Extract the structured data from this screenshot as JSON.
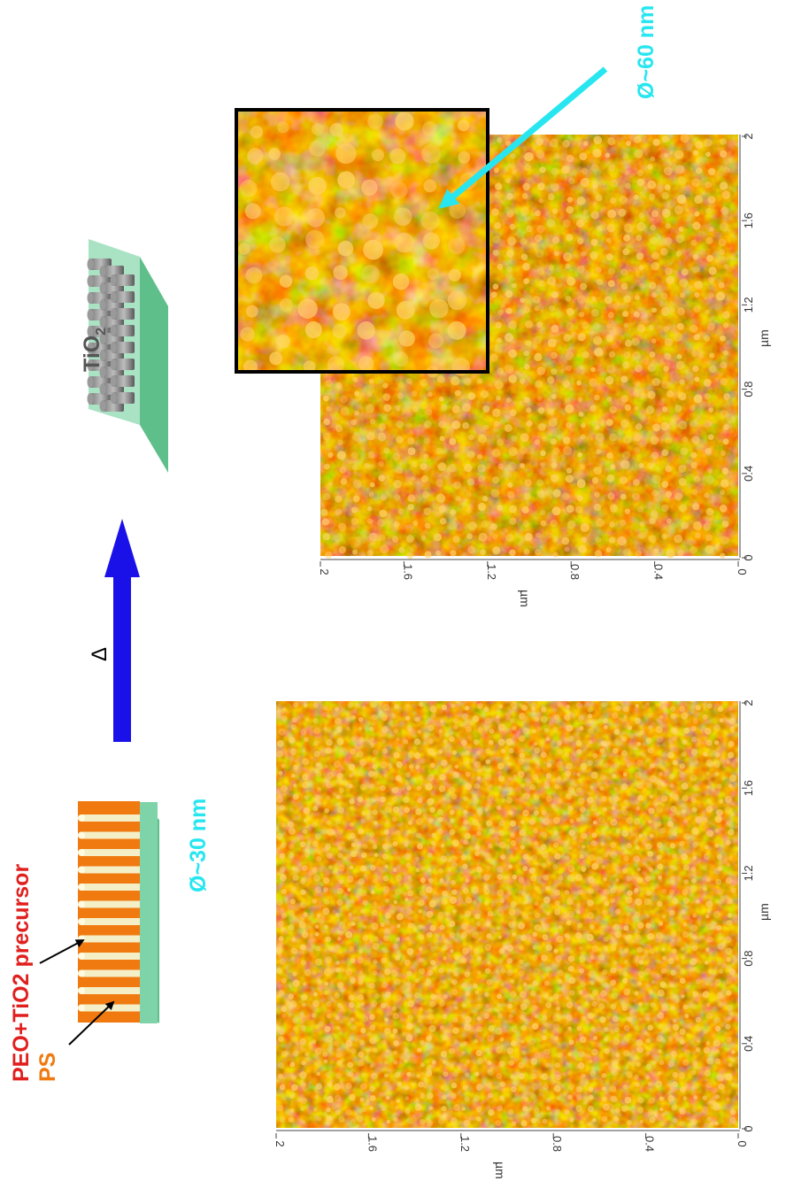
{
  "labels": {
    "peo_precursor": "PEO+TiO2 precursor",
    "ps": "PS",
    "diameter_small": "Ø~30 nm",
    "diameter_large": "Ø~60 nm",
    "heat_symbol": "Δ",
    "tio2_base": "TiO",
    "tio2_sub": "2"
  },
  "axes": {
    "unit": "µm",
    "ticks": [
      "0",
      "0.4",
      "0.8",
      "1.2",
      "1.6",
      "2"
    ]
  },
  "colors": {
    "red_text": "#e0201e",
    "orange_text": "#f07a10",
    "cyan": "#27e6f0",
    "arrow_blue": "#1a10e8",
    "substrate_green": "#7fd3a8",
    "afm_dark": "#6a2a00",
    "afm_mid": "#c25a00",
    "afm_light": "#ffd060"
  },
  "icons": {
    "heat_arrow": "blue-arrow-icon",
    "pointer_arrow": "cyan-pointer-arrow-icon"
  }
}
